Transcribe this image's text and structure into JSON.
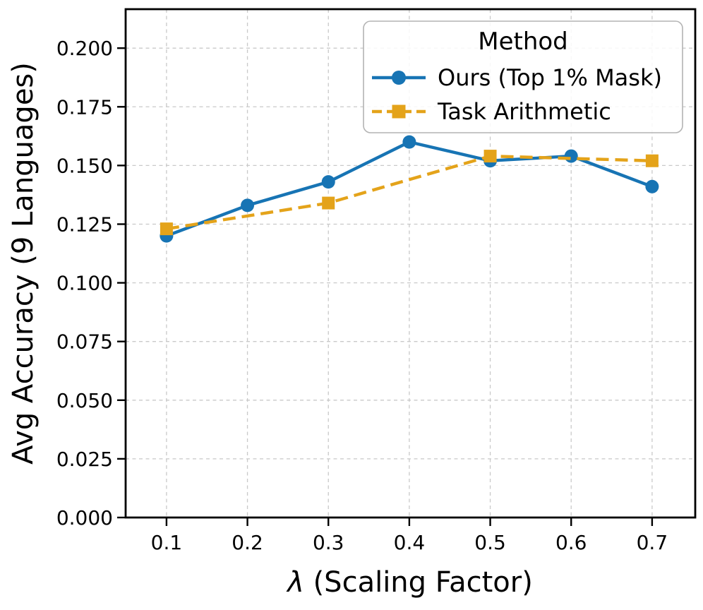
{
  "chart_data": {
    "type": "line",
    "title": "",
    "xlabel": "λ (Scaling Factor)",
    "xlabel_parts": {
      "symbol": "λ",
      "rest": " (Scaling Factor)"
    },
    "ylabel": "Avg Accuracy (9 Languages)",
    "xlim": [
      0.0495,
      0.7533
    ],
    "ylim": [
      0.0,
      0.2166
    ],
    "grid": true,
    "grid_color": "#c9c9c9",
    "background_color": "#ffffff",
    "spine_color": "#000000",
    "xticks": {
      "values": [
        0.1,
        0.2,
        0.3,
        0.4,
        0.5,
        0.6,
        0.7
      ],
      "labels": [
        "0.1",
        "0.2",
        "0.3",
        "0.4",
        "0.5",
        "0.6",
        "0.7"
      ]
    },
    "yticks": {
      "values": [
        0.0,
        0.025,
        0.05,
        0.075,
        0.1,
        0.125,
        0.15,
        0.175,
        0.2
      ],
      "labels": [
        "0.000",
        "0.025",
        "0.050",
        "0.075",
        "0.100",
        "0.125",
        "0.150",
        "0.175",
        "0.200"
      ]
    },
    "series": [
      {
        "name": "Ours (Top 1% Mask)",
        "color": "#1774b4",
        "marker": "circle",
        "line_style": "solid",
        "x": [
          0.1,
          0.2,
          0.3,
          0.4,
          0.5,
          0.6,
          0.7
        ],
        "y": [
          0.12,
          0.133,
          0.143,
          0.16,
          0.152,
          0.154,
          0.141
        ]
      },
      {
        "name": "Task Arithmetic",
        "color": "#e4a31a",
        "marker": "square",
        "line_style": "dashed",
        "x": [
          0.1,
          0.3,
          0.5,
          0.7
        ],
        "y": [
          0.123,
          0.134,
          0.154,
          0.152
        ]
      }
    ],
    "legend": {
      "title": "Method",
      "position": "upper-right"
    }
  }
}
